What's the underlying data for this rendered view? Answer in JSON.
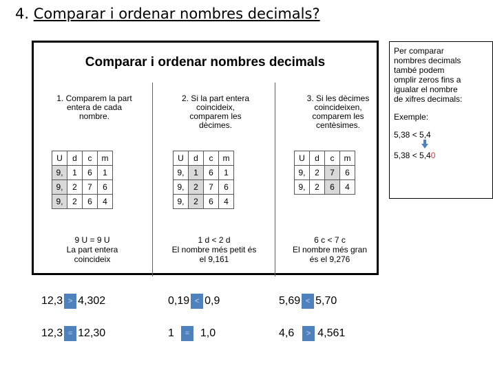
{
  "heading": {
    "number": "4. ",
    "text": "Comparar i ordenar nombres decimals?"
  },
  "box": {
    "title": "Comparar i ordenar nombres decimals",
    "columns": [
      {
        "step_lines": [
          "1.  Comparem la part",
          "entera de cada",
          "nombre."
        ],
        "headers": [
          "U",
          "d",
          "c",
          "m"
        ],
        "rows": [
          [
            "9,",
            "1",
            "6",
            "1"
          ],
          [
            "9,",
            "2",
            "7",
            "6"
          ],
          [
            "9,",
            "2",
            "6",
            "4"
          ]
        ],
        "note_lines": [
          "9 U = 9 U",
          "La part entera",
          "coincideix"
        ]
      },
      {
        "step_lines": [
          "2.  Si la part entera",
          "coincideix,",
          "comparem les",
          "dècimes."
        ],
        "headers": [
          "U",
          "d",
          "c",
          "m"
        ],
        "rows": [
          [
            "9,",
            "1",
            "6",
            "1"
          ],
          [
            "9,",
            "2",
            "7",
            "6"
          ],
          [
            "9,",
            "2",
            "6",
            "4"
          ]
        ],
        "note_lines": [
          "1 d < 2 d",
          "El nombre més petit és",
          "el 9,161"
        ]
      },
      {
        "step_lines": [
          "3.  Si les dècimes",
          "coincideixen,",
          "comparem les",
          "centèsimes."
        ],
        "headers": [
          "U",
          "d",
          "c",
          "m"
        ],
        "rows": [
          [
            "9,",
            "2",
            "7",
            "6"
          ],
          [
            "9,",
            "2",
            "6",
            "4"
          ]
        ],
        "note_lines": [
          "6 c < 7 c",
          "El nombre més gran",
          "és el 9,276"
        ]
      }
    ]
  },
  "side": {
    "lines": [
      "Per comparar",
      "nombres decimals",
      "també podem",
      "omplir zeros fins a",
      "igualar el nombre",
      "de xifres decimals:"
    ],
    "example_label": "Exemple:",
    "ex1": "5,38  < 5,4",
    "ex2_prefix": "5,38 <  5,4",
    "ex2_red": "0"
  },
  "exercises": [
    {
      "left": "12,3",
      "sym": ">",
      "right": "4,302"
    },
    {
      "left": "0,19",
      "sym": "<",
      "right": "0,9"
    },
    {
      "left": "5,69",
      "sym": "<",
      "right": "5,70"
    },
    {
      "left": "12,3",
      "sym": "=",
      "right": "12,30"
    },
    {
      "left": "1",
      "sym": "=",
      "right": "1,0"
    },
    {
      "left": "4,6",
      "sym": ">",
      "right": "4,561"
    }
  ],
  "colors": {
    "divider": "#4a5aa8",
    "highlight": "#d9d9d9",
    "symbol_box": "#4f81bd",
    "red": "#e03030"
  }
}
